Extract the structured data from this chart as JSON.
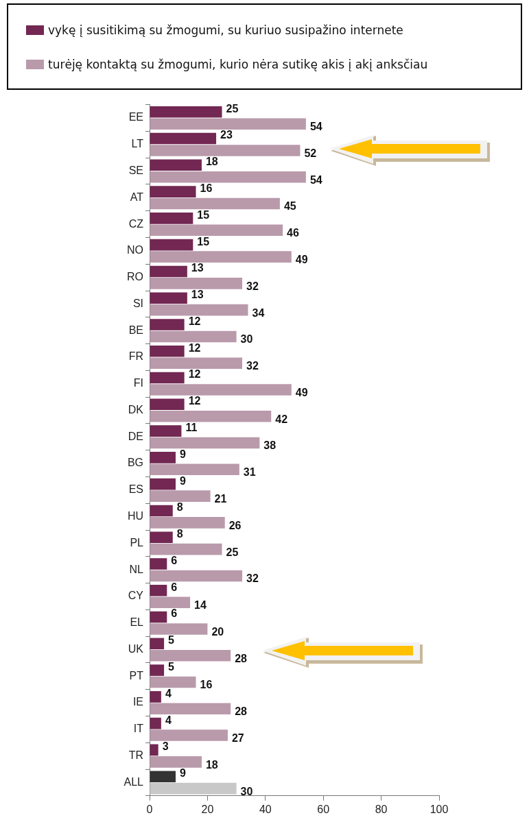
{
  "chart_data": {
    "type": "bar",
    "orientation": "horizontal",
    "categories": [
      "EE",
      "LT",
      "SE",
      "AT",
      "CZ",
      "NO",
      "RO",
      "SI",
      "BE",
      "FR",
      "FI",
      "DK",
      "DE",
      "BG",
      "ES",
      "HU",
      "PL",
      "NL",
      "CY",
      "EL",
      "UK",
      "PT",
      "IE",
      "IT",
      "TR",
      "ALL"
    ],
    "series": [
      {
        "name": "vykę į susitikimą su žmogumi, su kuriuo susipažino internete",
        "color": "#722852",
        "colors": [
          "#722852",
          "#722852",
          "#722852",
          "#722852",
          "#722852",
          "#722852",
          "#722852",
          "#722852",
          "#722852",
          "#722852",
          "#722852",
          "#722852",
          "#722852",
          "#722852",
          "#722852",
          "#722852",
          "#722852",
          "#722852",
          "#722852",
          "#722852",
          "#722852",
          "#722852",
          "#722852",
          "#722852",
          "#722852",
          "#333333"
        ],
        "values": [
          25,
          23,
          18,
          16,
          15,
          15,
          13,
          13,
          12,
          12,
          12,
          12,
          11,
          9,
          9,
          8,
          8,
          6,
          6,
          6,
          5,
          5,
          4,
          4,
          3,
          9
        ]
      },
      {
        "name": "turėję kontaktą su žmogumi, kurio nėra sutikę akis į akį anksčiau",
        "color": "#b99aab",
        "colors": [
          "#b99aab",
          "#b99aab",
          "#b99aab",
          "#b99aab",
          "#b99aab",
          "#b99aab",
          "#b99aab",
          "#b99aab",
          "#b99aab",
          "#b99aab",
          "#b99aab",
          "#b99aab",
          "#b99aab",
          "#b99aab",
          "#b99aab",
          "#b99aab",
          "#b99aab",
          "#b99aab",
          "#b99aab",
          "#b99aab",
          "#b99aab",
          "#b99aab",
          "#b99aab",
          "#b99aab",
          "#b99aab",
          "#c8c8c8"
        ],
        "values": [
          54,
          52,
          54,
          45,
          46,
          49,
          32,
          34,
          30,
          32,
          49,
          42,
          38,
          31,
          21,
          26,
          25,
          32,
          14,
          20,
          28,
          16,
          28,
          27,
          18,
          30
        ]
      }
    ],
    "xlim": [
      0,
      100
    ],
    "xticks": [
      0,
      20,
      40,
      60,
      80,
      100
    ],
    "data_labels": true,
    "legend": "top",
    "grid": false
  }
}
